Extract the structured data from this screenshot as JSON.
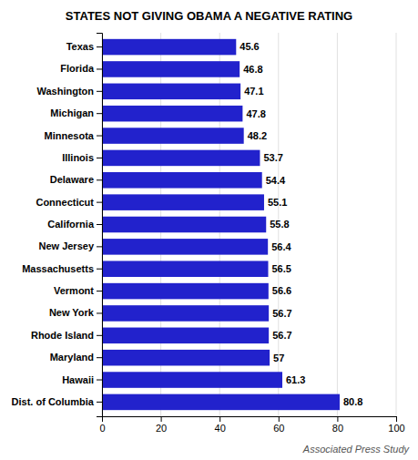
{
  "chart_data": {
    "type": "bar",
    "title": "STATES NOT GIVING OBAMA A NEGATIVE RATING",
    "orientation": "horizontal",
    "categories": [
      "Texas",
      "Florida",
      "Washington",
      "Michigan",
      "Minnesota",
      "Illinois",
      "Delaware",
      "Connecticut",
      "California",
      "New Jersey",
      "Massachusetts",
      "Vermont",
      "New York",
      "Rhode Island",
      "Maryland",
      "Hawaii",
      "Dist. of Columbia"
    ],
    "values": [
      45.6,
      46.8,
      47.1,
      47.8,
      48.2,
      53.7,
      54.4,
      55.1,
      55.8,
      56.4,
      56.5,
      56.6,
      56.7,
      56.7,
      57,
      61.3,
      80.8
    ],
    "color": "#2222cc",
    "xlim": [
      0,
      100
    ],
    "xticks": [
      0,
      20,
      40,
      60,
      80,
      100
    ],
    "grid": true,
    "data_labels": true,
    "annotations": [
      "Associated Press Study"
    ]
  }
}
